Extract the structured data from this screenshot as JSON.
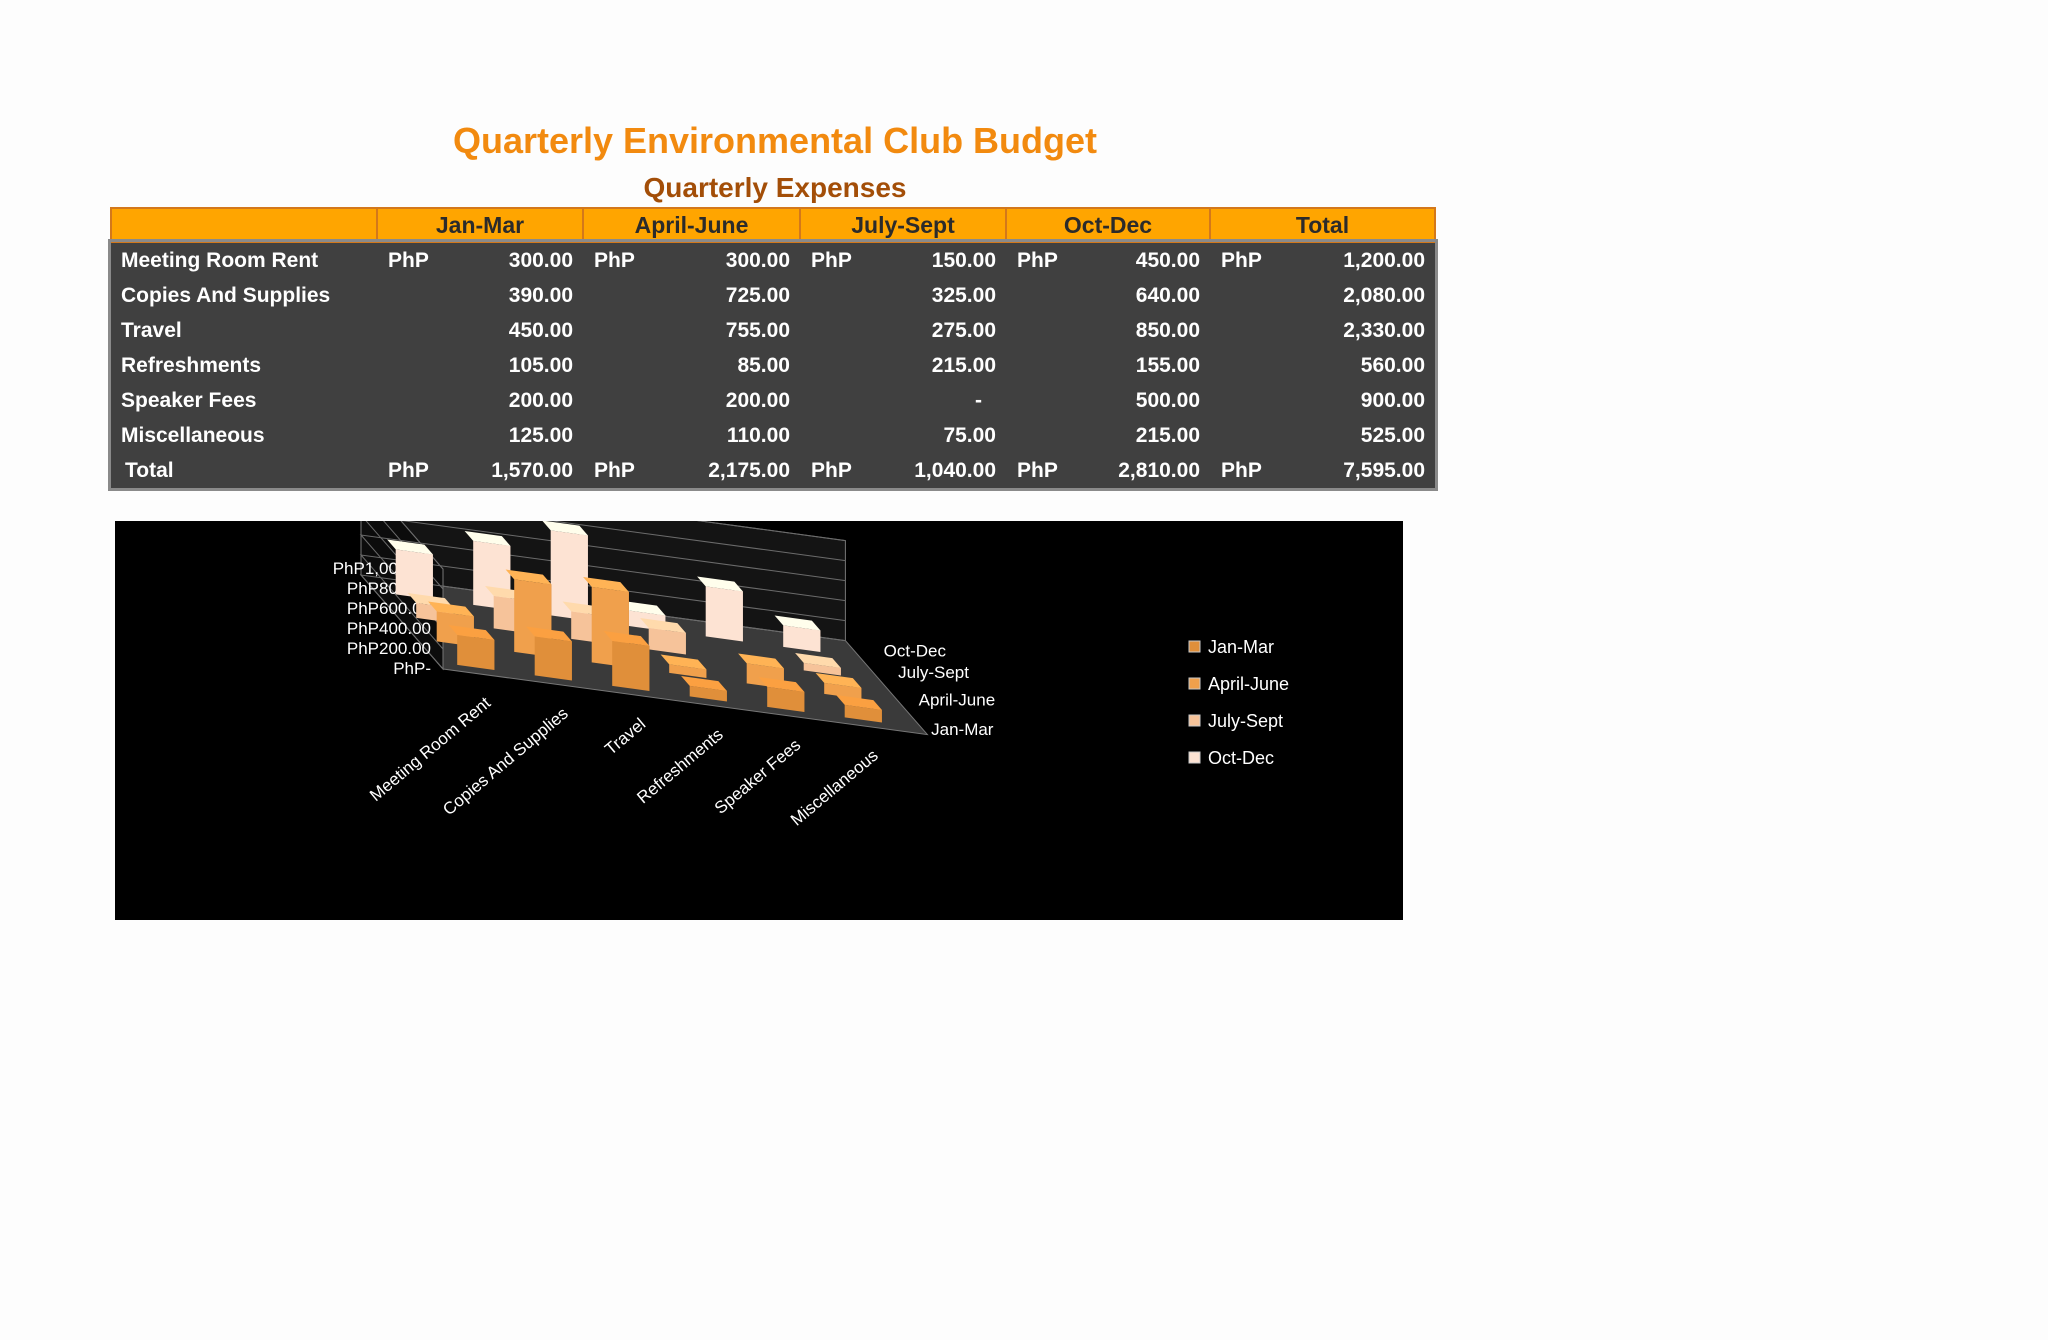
{
  "title": "Quarterly Environmental Club Budget",
  "subtitle": "Quarterly Expenses",
  "table": {
    "headers": [
      "",
      "Jan-Mar",
      "April-June",
      "July-Sept",
      "Oct-Dec",
      "Total"
    ],
    "currency": "PhP",
    "rows": [
      {
        "label": "Meeting Room Rent",
        "cells": [
          {
            "cur": "PhP",
            "val": "300.00"
          },
          {
            "cur": "PhP",
            "val": "300.00"
          },
          {
            "cur": "PhP",
            "val": "150.00"
          },
          {
            "cur": "PhP",
            "val": "450.00"
          },
          {
            "cur": "PhP",
            "val": "1,200.00"
          }
        ]
      },
      {
        "label": "Copies And Supplies",
        "cells": [
          {
            "cur": "",
            "val": "390.00"
          },
          {
            "cur": "",
            "val": "725.00"
          },
          {
            "cur": "",
            "val": "325.00"
          },
          {
            "cur": "",
            "val": "640.00"
          },
          {
            "cur": "",
            "val": "2,080.00"
          }
        ]
      },
      {
        "label": "Travel",
        "cells": [
          {
            "cur": "",
            "val": "450.00"
          },
          {
            "cur": "",
            "val": "755.00"
          },
          {
            "cur": "",
            "val": "275.00"
          },
          {
            "cur": "",
            "val": "850.00"
          },
          {
            "cur": "",
            "val": "2,330.00"
          }
        ]
      },
      {
        "label": "Refreshments",
        "cells": [
          {
            "cur": "",
            "val": "105.00"
          },
          {
            "cur": "",
            "val": "85.00"
          },
          {
            "cur": "",
            "val": "215.00"
          },
          {
            "cur": "",
            "val": "155.00"
          },
          {
            "cur": "",
            "val": "560.00"
          }
        ]
      },
      {
        "label": "Speaker Fees",
        "cells": [
          {
            "cur": "",
            "val": "200.00"
          },
          {
            "cur": "",
            "val": "200.00"
          },
          {
            "cur": "",
            "val": "-"
          },
          {
            "cur": "",
            "val": "500.00"
          },
          {
            "cur": "",
            "val": "900.00"
          }
        ]
      },
      {
        "label": "Miscellaneous",
        "cells": [
          {
            "cur": "",
            "val": "125.00"
          },
          {
            "cur": "",
            "val": "110.00"
          },
          {
            "cur": "",
            "val": "75.00"
          },
          {
            "cur": "",
            "val": "215.00"
          },
          {
            "cur": "",
            "val": "525.00"
          }
        ]
      },
      {
        "label": "Total",
        "cells": [
          {
            "cur": "PhP",
            "val": "1,570.00"
          },
          {
            "cur": "PhP",
            "val": "2,175.00"
          },
          {
            "cur": "PhP",
            "val": "1,040.00"
          },
          {
            "cur": "PhP",
            "val": "2,810.00"
          },
          {
            "cur": "PhP",
            "val": "7,595.00"
          }
        ]
      }
    ]
  },
  "chart_data": {
    "type": "bar",
    "variant": "3d-column",
    "categories": [
      "Meeting Room Rent",
      "Copies And Supplies",
      "Travel",
      "Refreshments",
      "Speaker Fees",
      "Miscellaneous"
    ],
    "series": [
      {
        "name": "Jan-Mar",
        "values": [
          300,
          390,
          450,
          105,
          200,
          125
        ],
        "color": "#e08f3a"
      },
      {
        "name": "April-June",
        "values": [
          300,
          725,
          755,
          85,
          200,
          110
        ],
        "color": "#f0a04c"
      },
      {
        "name": "July-Sept",
        "values": [
          150,
          325,
          275,
          215,
          0,
          75
        ],
        "color": "#f6c39a"
      },
      {
        "name": "Oct-Dec",
        "values": [
          450,
          640,
          850,
          155,
          500,
          215
        ],
        "color": "#fde3d3"
      }
    ],
    "ylim": [
      0,
      1000
    ],
    "y_ticks": [
      "PhP-",
      "PhP200.00",
      "PhP400.00",
      "PhP600.00",
      "PhP800.00",
      "PhP1,000.00"
    ],
    "grid": true,
    "legend": "right",
    "background": "#000000"
  }
}
